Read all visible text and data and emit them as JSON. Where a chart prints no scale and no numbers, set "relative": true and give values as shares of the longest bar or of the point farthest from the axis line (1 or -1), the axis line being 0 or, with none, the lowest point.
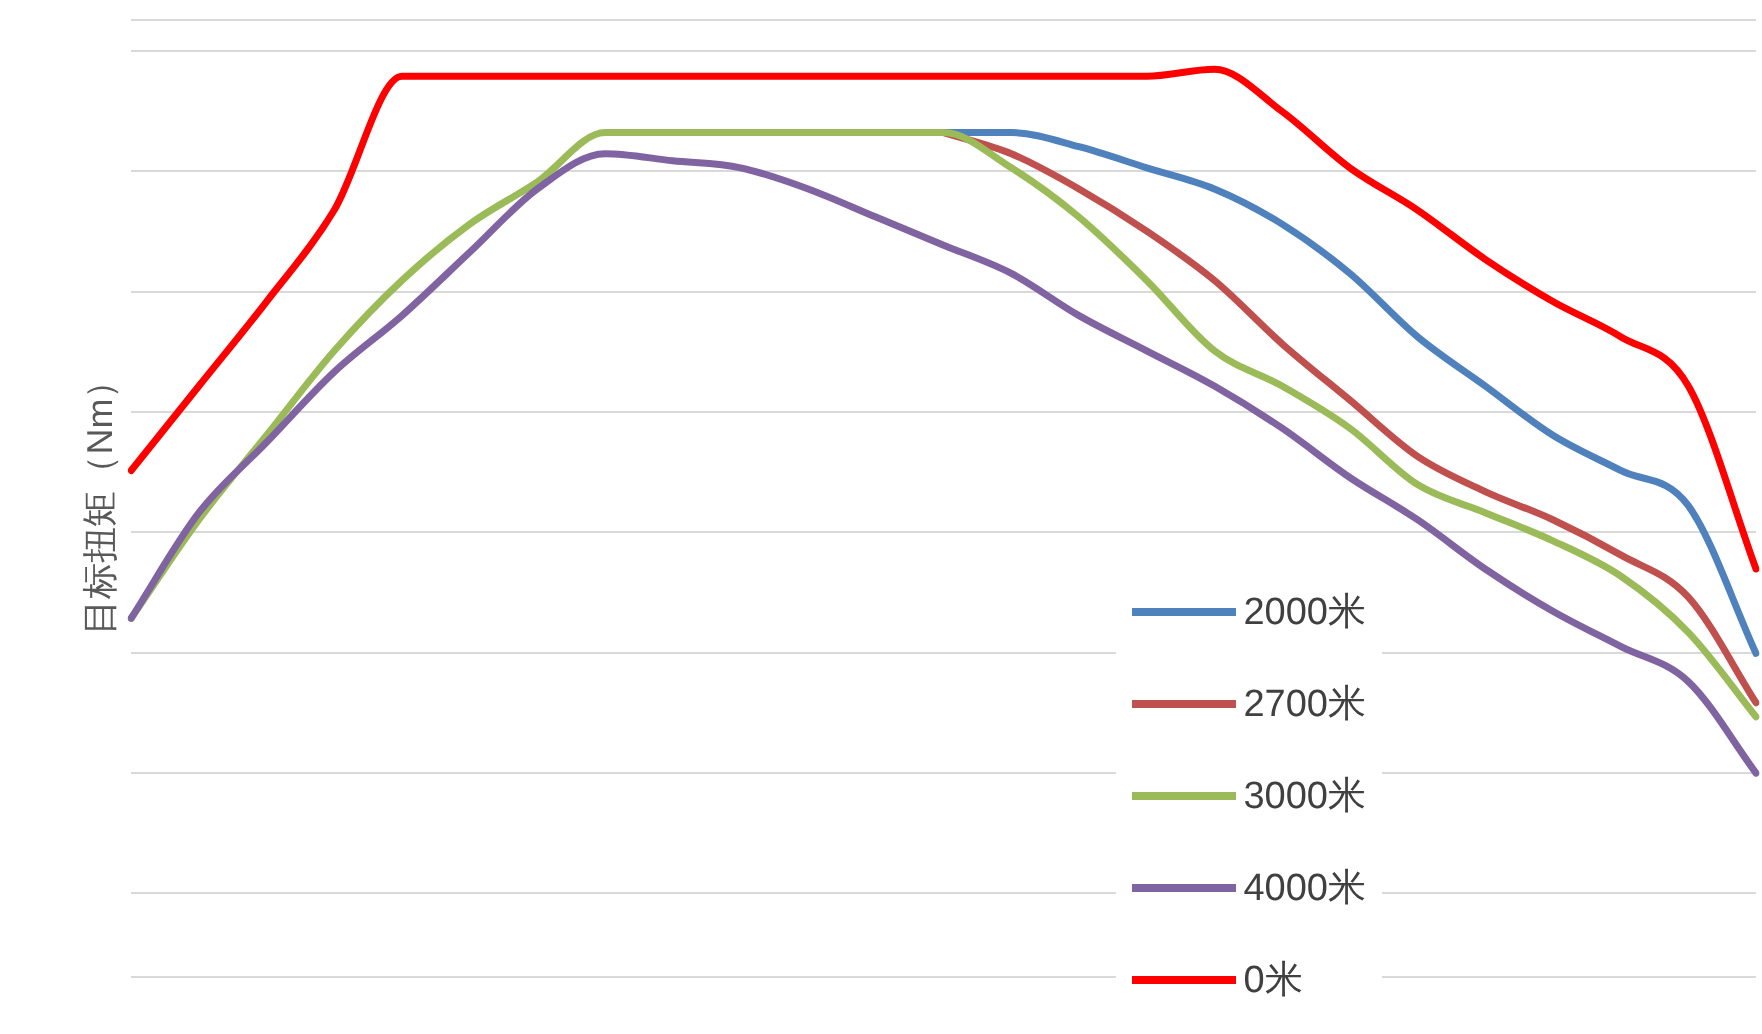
{
  "chart_data": {
    "type": "line",
    "ylabel": "目标扭矩（Nm）",
    "relative": true,
    "grid": "y",
    "legend": "bottom right",
    "marker": "none",
    "line_style": "solid",
    "categories": [
      null,
      null,
      null,
      null,
      null,
      null,
      null,
      null,
      null,
      null,
      null,
      null,
      null,
      null,
      null,
      null,
      null,
      null,
      null,
      null,
      null,
      null,
      null,
      null,
      null
    ],
    "series": [
      {
        "name": "2000米",
        "color": "#4f81bd",
        "values": [
          null,
          null,
          null,
          null,
          null,
          null,
          null,
          null,
          null,
          null,
          null,
          null,
          0.91,
          0.91,
          0.89,
          0.86,
          0.83,
          0.78,
          0.71,
          0.62,
          0.55,
          0.48,
          0.43,
          0.38,
          0.17
        ]
      },
      {
        "name": "2700米",
        "color": "#c0504d",
        "values": [
          null,
          null,
          null,
          null,
          null,
          null,
          null,
          null,
          null,
          null,
          null,
          null,
          0.91,
          0.88,
          0.83,
          0.77,
          0.7,
          0.61,
          0.53,
          0.45,
          0.4,
          0.36,
          0.31,
          0.25,
          0.1
        ]
      },
      {
        "name": "3000米",
        "color": "#9bbb59",
        "values": [
          0.22,
          0.36,
          0.48,
          0.6,
          0.7,
          0.78,
          0.84,
          0.91,
          0.91,
          0.91,
          0.91,
          0.91,
          0.91,
          0.86,
          0.79,
          0.7,
          0.6,
          0.55,
          0.49,
          0.41,
          0.37,
          0.33,
          0.28,
          0.2,
          0.08
        ]
      },
      {
        "name": "4000米",
        "color": "#8064a2",
        "values": [
          0.22,
          0.37,
          0.47,
          0.57,
          0.65,
          0.74,
          0.83,
          0.88,
          0.87,
          0.86,
          0.83,
          0.79,
          0.75,
          0.71,
          0.65,
          0.6,
          0.55,
          0.49,
          0.42,
          0.36,
          0.29,
          0.23,
          0.18,
          0.13,
          0.0
        ]
      },
      {
        "name": "0米",
        "color": "#ff0000",
        "values": [
          0.43,
          0.55,
          0.67,
          0.8,
          0.99,
          0.99,
          0.99,
          0.99,
          0.99,
          0.99,
          0.99,
          0.99,
          0.99,
          0.99,
          0.99,
          0.99,
          1.0,
          0.94,
          0.86,
          0.8,
          0.73,
          0.67,
          0.62,
          0.55,
          0.29
        ]
      }
    ]
  }
}
